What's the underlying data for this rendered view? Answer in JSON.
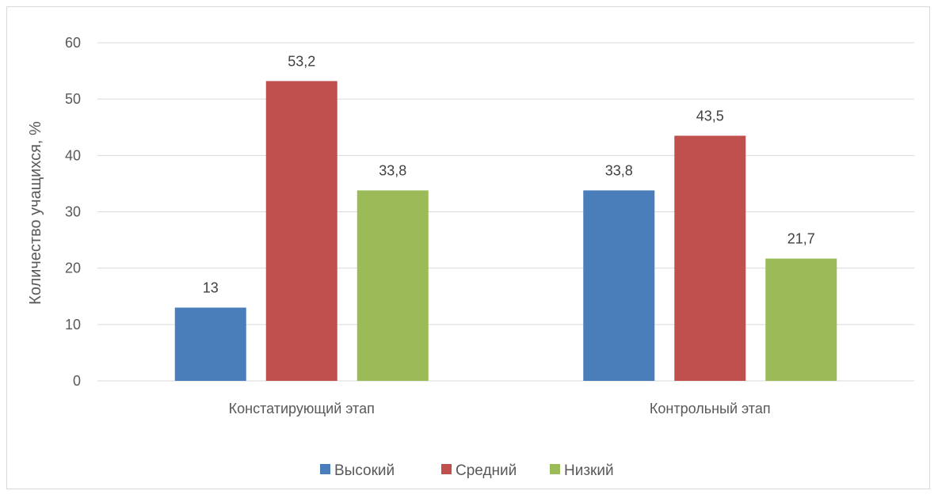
{
  "chart_data": {
    "type": "bar",
    "categories": [
      "Констатирующий этап",
      "Контрольный этап"
    ],
    "series": [
      {
        "name": "Высокий",
        "values": [
          13,
          33.8
        ],
        "labels": [
          "13",
          "33,8"
        ],
        "color": "#4a7ebb"
      },
      {
        "name": "Средний",
        "values": [
          53.2,
          43.5
        ],
        "labels": [
          "53,2",
          "43,5"
        ],
        "color": "#c0504d"
      },
      {
        "name": "Низкий",
        "values": [
          33.8,
          21.7
        ],
        "labels": [
          "33,8",
          "21,7"
        ],
        "color": "#9bbb59"
      }
    ],
    "ylabel": "Количество учащихся, %",
    "ylim": [
      0,
      60
    ],
    "yticks": [
      0,
      10,
      20,
      30,
      40,
      50,
      60
    ],
    "grid": true,
    "legend": "bottom"
  }
}
